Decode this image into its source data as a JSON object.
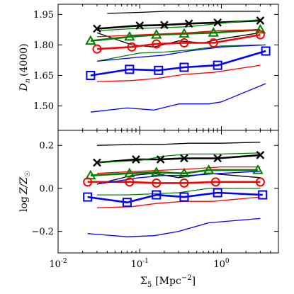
{
  "chart_data": [
    {
      "type": "line",
      "panel": "top",
      "ylabel": "D_n (4000)",
      "ylabel_main": "D",
      "ylabel_sub": "n",
      "ylabel_rest": "(4000)",
      "ylim": [
        1.38,
        2.0
      ],
      "yticks": [
        1.5,
        1.65,
        1.8,
        1.95
      ],
      "ytick_labels": [
        "1.50",
        "1.65",
        "1.80",
        "1.95"
      ],
      "series": [
        {
          "color": "#000000",
          "style": "median",
          "marker": "x",
          "x": [
            0.03,
            0.1,
            0.2,
            0.4,
            0.9,
            3.0
          ],
          "y": [
            1.88,
            1.895,
            1.898,
            1.905,
            1.91,
            1.92
          ]
        },
        {
          "color": "#000000",
          "style": "upper",
          "x": [
            0.04,
            0.1,
            0.2,
            0.4,
            0.9,
            3.0
          ],
          "y": [
            1.955,
            1.96,
            1.965,
            1.965,
            1.965,
            1.965
          ]
        },
        {
          "color": "#000000",
          "style": "lower",
          "x": [
            0.03,
            0.08,
            0.15,
            0.3,
            0.6,
            1.0,
            3.0
          ],
          "y": [
            1.86,
            1.8,
            1.79,
            1.82,
            1.81,
            1.83,
            1.86
          ]
        },
        {
          "color": "#008000",
          "style": "median",
          "marker": "triangle",
          "x": [
            0.025,
            0.075,
            0.16,
            0.35,
            0.8,
            3.0
          ],
          "y": [
            1.82,
            1.84,
            1.85,
            1.855,
            1.86,
            1.875
          ]
        },
        {
          "color": "#008000",
          "style": "upper",
          "x": [
            0.03,
            0.08,
            0.2,
            0.4,
            0.9,
            3.0
          ],
          "y": [
            1.87,
            1.88,
            1.885,
            1.89,
            1.905,
            1.925
          ]
        },
        {
          "color": "#008000",
          "style": "lower",
          "x": [
            0.03,
            0.1,
            0.2,
            0.4,
            1.0,
            3.0
          ],
          "y": [
            1.72,
            1.76,
            1.765,
            1.775,
            1.795,
            1.8
          ]
        },
        {
          "color": "#ff0000",
          "style": "median",
          "marker": "circle",
          "x": [
            0.03,
            0.08,
            0.16,
            0.35,
            0.8,
            3.0
          ],
          "y": [
            1.78,
            1.79,
            1.805,
            1.81,
            1.81,
            1.85
          ]
        },
        {
          "color": "#ff0000",
          "style": "upper",
          "x": [
            0.03,
            0.1,
            0.2,
            0.4,
            0.9,
            3.0
          ],
          "y": [
            1.84,
            1.85,
            1.855,
            1.86,
            1.87,
            1.875
          ]
        },
        {
          "color": "#ff0000",
          "style": "lower",
          "x": [
            0.03,
            0.08,
            0.16,
            0.35,
            0.8,
            3.0
          ],
          "y": [
            1.62,
            1.625,
            1.635,
            1.655,
            1.665,
            1.7
          ]
        },
        {
          "color": "#0000ff",
          "style": "median",
          "marker": "square",
          "x": [
            0.025,
            0.075,
            0.17,
            0.35,
            0.9,
            3.5
          ],
          "y": [
            1.65,
            1.68,
            1.675,
            1.69,
            1.7,
            1.77
          ]
        },
        {
          "color": "#0000ff",
          "style": "upper",
          "x": [
            0.03,
            0.1,
            0.2,
            0.4,
            1.0,
            3.5
          ],
          "y": [
            1.72,
            1.74,
            1.75,
            1.77,
            1.79,
            1.8
          ]
        },
        {
          "color": "#0000ff",
          "style": "lower",
          "x": [
            0.025,
            0.07,
            0.15,
            0.3,
            0.7,
            1.0,
            3.5
          ],
          "y": [
            1.47,
            1.49,
            1.48,
            1.51,
            1.51,
            1.52,
            1.61
          ]
        }
      ]
    },
    {
      "type": "line",
      "panel": "bottom",
      "ylabel": "log Z/Z_☉",
      "ylabel_main": "log",
      "ylabel_rest": "Z/Z",
      "ylabel_sub": "☉",
      "xlabel": "Σ_5 [Mpc^-2]",
      "xlabel_main": "Σ",
      "xlabel_sub": "5",
      "xlabel_rest": "[Mpc",
      "xlabel_sup": "−2",
      "xlabel_close": "]",
      "xscale": "log",
      "xlim": [
        0.01,
        5.0
      ],
      "xticks": [
        0.01,
        0.1,
        1.0
      ],
      "xtick_base": [
        "10",
        "10",
        "10"
      ],
      "xtick_exp": [
        "-2",
        "-1",
        "0"
      ],
      "ylim": [
        -0.3,
        0.27
      ],
      "yticks": [
        -0.2,
        0.0,
        0.2
      ],
      "ytick_labels": [
        "−0.2",
        "0.0",
        "0.2"
      ],
      "series": [
        {
          "color": "#000000",
          "style": "median",
          "marker": "x",
          "x": [
            0.03,
            0.09,
            0.18,
            0.35,
            0.9,
            3.0
          ],
          "y": [
            0.12,
            0.135,
            0.135,
            0.14,
            0.14,
            0.155
          ]
        },
        {
          "color": "#000000",
          "style": "upper",
          "x": [
            0.03,
            0.1,
            0.2,
            0.4,
            1.0,
            3.0
          ],
          "y": [
            0.2,
            0.205,
            0.205,
            0.21,
            0.21,
            0.215
          ]
        },
        {
          "color": "#000000",
          "style": "lower",
          "x": [
            0.03,
            0.08,
            0.15,
            0.3,
            0.7,
            3.0
          ],
          "y": [
            0.02,
            0.06,
            0.07,
            0.05,
            0.07,
            0.05
          ]
        },
        {
          "color": "#008000",
          "style": "median",
          "marker": "triangle",
          "x": [
            0.025,
            0.075,
            0.16,
            0.35,
            0.7,
            2.8
          ],
          "y": [
            0.06,
            0.07,
            0.075,
            0.07,
            0.085,
            0.085
          ]
        },
        {
          "color": "#008000",
          "style": "upper",
          "x": [
            0.03,
            0.1,
            0.2,
            0.4,
            1.0,
            3.0
          ],
          "y": [
            0.12,
            0.13,
            0.15,
            0.16,
            0.16,
            0.165
          ]
        },
        {
          "color": "#008000",
          "style": "lower",
          "x": [
            0.03,
            0.07,
            0.15,
            0.3,
            0.7,
            3.0
          ],
          "y": [
            -0.03,
            -0.03,
            -0.025,
            -0.02,
            0.0,
            0.0
          ]
        },
        {
          "color": "#ff0000",
          "style": "median",
          "marker": "circle",
          "x": [
            0.023,
            0.075,
            0.16,
            0.35,
            0.85,
            3.0
          ],
          "y": [
            0.03,
            0.03,
            0.025,
            0.025,
            0.03,
            0.03
          ]
        },
        {
          "color": "#ff0000",
          "style": "upper",
          "x": [
            0.03,
            0.1,
            0.2,
            0.4,
            1.0,
            3.0
          ],
          "y": [
            0.07,
            0.08,
            0.085,
            0.09,
            0.1,
            0.1
          ]
        },
        {
          "color": "#ff0000",
          "style": "lower",
          "x": [
            0.03,
            0.08,
            0.16,
            0.35,
            0.8,
            3.0
          ],
          "y": [
            -0.09,
            -0.085,
            -0.07,
            -0.06,
            -0.06,
            -0.04
          ]
        },
        {
          "color": "#0000ff",
          "style": "median",
          "marker": "square",
          "x": [
            0.023,
            0.07,
            0.16,
            0.35,
            0.9,
            3.2
          ],
          "y": [
            -0.04,
            -0.065,
            -0.03,
            -0.04,
            -0.02,
            -0.03
          ]
        },
        {
          "color": "#0000ff",
          "style": "upper",
          "x": [
            0.03,
            0.1,
            0.2,
            0.4,
            1.0,
            3.0
          ],
          "y": [
            0.02,
            0.05,
            0.06,
            0.06,
            0.07,
            0.08
          ]
        },
        {
          "color": "#0000ff",
          "style": "lower",
          "x": [
            0.023,
            0.07,
            0.15,
            0.3,
            0.7,
            3.0
          ],
          "y": [
            -0.21,
            -0.225,
            -0.22,
            -0.2,
            -0.16,
            -0.14
          ]
        }
      ]
    }
  ]
}
